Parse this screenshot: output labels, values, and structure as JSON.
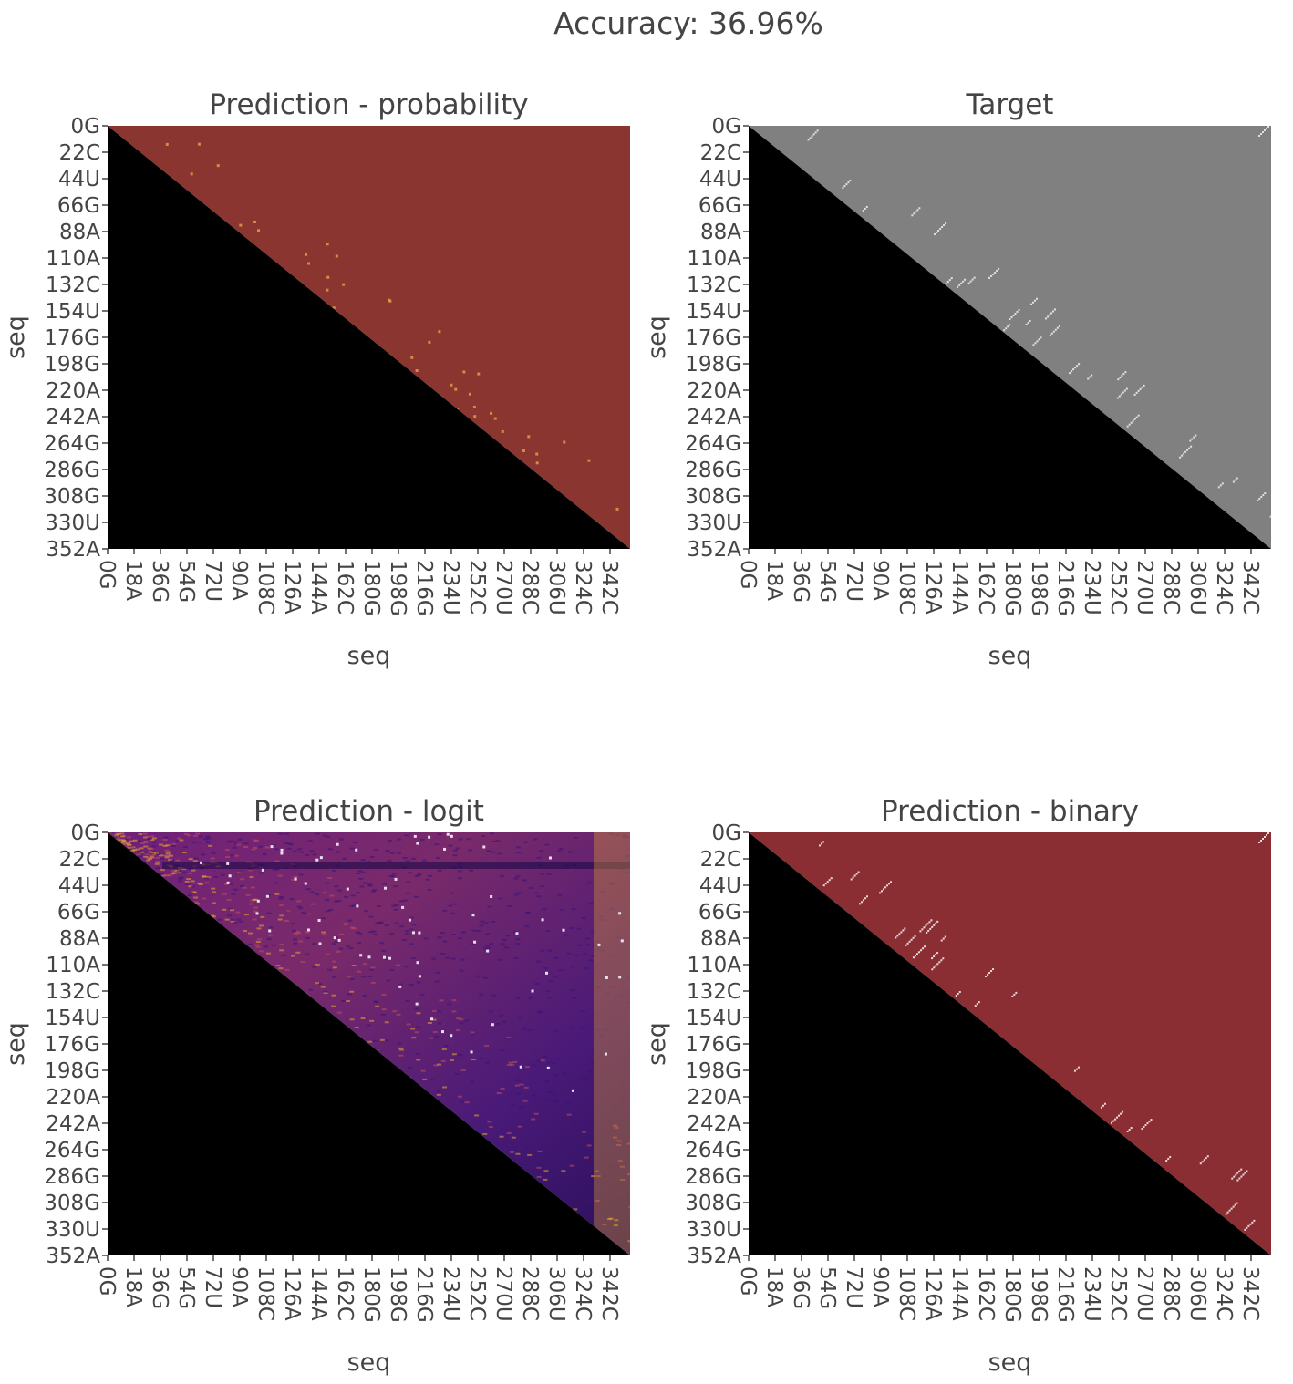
{
  "figure": {
    "title": "Accuracy: 36.96%"
  },
  "colors": {
    "lower_triangle": "#000000",
    "probability_background": "#8b3530",
    "probability_hot": "#e6a24a",
    "target_background": "#808080",
    "target_pair": "#e0e0e0",
    "binary_background": "#8b2e34",
    "binary_pair": "#e8dada",
    "logit_low": "#2a0f5c",
    "logit_mid": "#6f2079",
    "logit_high": "#e9a72b",
    "axis_text": "#444444"
  },
  "chart_data": [
    {
      "type": "heatmap",
      "title": "Prediction - probability",
      "xlabel": "seq",
      "ylabel": "seq",
      "colormap": "red-orange",
      "x_tick_labels": [
        "0G",
        "18A",
        "36G",
        "54G",
        "72U",
        "90A",
        "108C",
        "126A",
        "144A",
        "162C",
        "180G",
        "198G",
        "216G",
        "234U",
        "252C",
        "270U",
        "288C",
        "306U",
        "324C",
        "342C"
      ],
      "y_tick_labels": [
        "0G",
        "22C",
        "44U",
        "66G",
        "88A",
        "110A",
        "132C",
        "154U",
        "176G",
        "198G",
        "220A",
        "242A",
        "264G",
        "286G",
        "308G",
        "330U",
        "352A"
      ],
      "sequence_length": 352,
      "masked_region": "lower triangle"
    },
    {
      "type": "heatmap",
      "title": "Target",
      "xlabel": "seq",
      "ylabel": "",
      "colormap": "gray",
      "x_tick_labels": [
        "0G",
        "18A",
        "36G",
        "54G",
        "72U",
        "90A",
        "108C",
        "126A",
        "144A",
        "162C",
        "180G",
        "198G",
        "216G",
        "234U",
        "252C",
        "270U",
        "288C",
        "306U",
        "324C",
        "342C"
      ],
      "y_tick_labels": [
        "0G",
        "22C",
        "44U",
        "66G",
        "88A",
        "110A",
        "132C",
        "154U",
        "176G",
        "198G",
        "220A",
        "242A",
        "264G",
        "286G",
        "308G",
        "330U",
        "352A"
      ],
      "sequence_length": 352,
      "masked_region": "lower triangle"
    },
    {
      "type": "heatmap",
      "title": "Prediction - logit",
      "xlabel": "seq",
      "ylabel": "seq",
      "colormap": "inferno",
      "x_tick_labels": [
        "0G",
        "18A",
        "36G",
        "54G",
        "72U",
        "90A",
        "108C",
        "126A",
        "144A",
        "162C",
        "180G",
        "198G",
        "216G",
        "234U",
        "252C",
        "270U",
        "288C",
        "306U",
        "324C",
        "342C"
      ],
      "y_tick_labels": [
        "0G",
        "22C",
        "44U",
        "66G",
        "88A",
        "110A",
        "132C",
        "154U",
        "176G",
        "198G",
        "220A",
        "242A",
        "264G",
        "286G",
        "308G",
        "330U",
        "352A"
      ],
      "sequence_length": 352,
      "masked_region": "lower triangle"
    },
    {
      "type": "heatmap",
      "title": "Prediction - binary",
      "xlabel": "seq",
      "ylabel": "seq",
      "colormap": "red-binary",
      "x_tick_labels": [
        "0G",
        "18A",
        "36G",
        "54G",
        "72U",
        "90A",
        "108C",
        "126A",
        "144A",
        "162C",
        "180G",
        "198G",
        "216G",
        "234U",
        "252C",
        "270U",
        "288C",
        "306U",
        "324C",
        "342C"
      ],
      "y_tick_labels": [
        "0G",
        "22C",
        "44U",
        "66G",
        "88A",
        "110A",
        "132C",
        "154U",
        "176G",
        "198G",
        "220A",
        "242A",
        "264G",
        "286G",
        "308G",
        "330U",
        "352A"
      ],
      "sequence_length": 352,
      "masked_region": "lower triangle"
    }
  ]
}
